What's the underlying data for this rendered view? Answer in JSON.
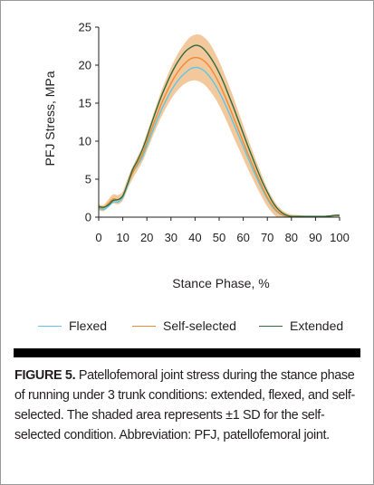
{
  "chart_data": {
    "type": "line",
    "title": "",
    "xlabel": "Stance Phase, %",
    "ylabel": "PFJ Stress, MPa",
    "xlim": [
      0,
      100
    ],
    "ylim": [
      0,
      25
    ],
    "x_ticks": [
      "0",
      "10",
      "20",
      "30",
      "40",
      "50",
      "60",
      "70",
      "80",
      "90",
      "100"
    ],
    "y_ticks": [
      "0",
      "5",
      "10",
      "15",
      "20",
      "25"
    ],
    "grid": false,
    "legend_position": "bottom",
    "x": [
      0,
      2,
      4,
      6,
      8,
      10,
      12,
      14,
      16,
      18,
      20,
      22,
      24,
      26,
      28,
      30,
      32,
      34,
      36,
      38,
      40,
      42,
      44,
      46,
      48,
      50,
      52,
      54,
      56,
      58,
      60,
      62,
      64,
      66,
      68,
      70,
      72,
      74,
      76,
      78,
      80,
      82,
      84,
      86,
      88,
      90,
      92,
      94,
      96,
      98,
      100
    ],
    "series": [
      {
        "name": "Flexed",
        "color": "#5bc8e6",
        "values": [
          1.2,
          1.0,
          1.4,
          2.0,
          2.0,
          2.6,
          4.2,
          5.8,
          6.8,
          7.8,
          9.4,
          11.0,
          12.6,
          14.1,
          15.4,
          16.6,
          17.6,
          18.4,
          19.0,
          19.5,
          19.7,
          19.6,
          19.2,
          18.5,
          17.6,
          16.5,
          15.2,
          13.8,
          12.3,
          10.8,
          9.3,
          7.8,
          6.3,
          4.9,
          3.6,
          2.4,
          1.4,
          0.7,
          0.3,
          0.1,
          0.05,
          0.1,
          0.1,
          0.1,
          0.1,
          0.1,
          0.1,
          0.1,
          0.15,
          0.2,
          0.2
        ]
      },
      {
        "name": "Self-selected",
        "color": "#f28a2c",
        "values": [
          1.3,
          1.2,
          1.8,
          2.4,
          2.3,
          2.8,
          4.4,
          5.8,
          7.0,
          8.2,
          9.9,
          11.6,
          13.3,
          14.9,
          16.3,
          17.6,
          18.7,
          19.6,
          20.3,
          20.8,
          21.0,
          20.9,
          20.5,
          19.8,
          18.8,
          17.6,
          16.2,
          14.7,
          13.1,
          11.5,
          9.9,
          8.3,
          6.8,
          5.3,
          3.9,
          2.6,
          1.6,
          0.8,
          0.35,
          0.15,
          0.05,
          0.1,
          0.1,
          0.1,
          0.1,
          0.1,
          0.1,
          0.1,
          0.15,
          0.2,
          0.2
        ]
      },
      {
        "name": "Extended",
        "color": "#2d6b3b",
        "values": [
          1.4,
          1.3,
          1.6,
          2.2,
          2.3,
          2.8,
          4.4,
          6.2,
          7.4,
          8.8,
          10.5,
          12.4,
          14.2,
          15.9,
          17.4,
          18.8,
          20.0,
          21.0,
          21.8,
          22.3,
          22.6,
          22.5,
          22.0,
          21.2,
          20.2,
          19.0,
          17.6,
          16.0,
          14.4,
          12.7,
          11.0,
          9.3,
          7.7,
          6.1,
          4.6,
          3.3,
          2.1,
          1.2,
          0.6,
          0.25,
          0.1,
          0.1,
          0.1,
          0.1,
          0.1,
          0.1,
          0.1,
          0.1,
          0.15,
          0.25,
          0.25
        ]
      }
    ],
    "band": {
      "series": "Self-selected",
      "color": "#f3c89d",
      "sd": [
        0.4,
        0.4,
        0.5,
        0.6,
        0.6,
        0.6,
        0.7,
        0.8,
        0.9,
        1.0,
        1.2,
        1.3,
        1.5,
        1.7,
        1.9,
        2.1,
        2.3,
        2.5,
        2.7,
        2.9,
        3.0,
        3.1,
        3.1,
        3.1,
        3.0,
        2.9,
        2.8,
        2.7,
        2.6,
        2.4,
        2.2,
        2.0,
        1.8,
        1.6,
        1.4,
        1.2,
        1.0,
        0.8,
        0.6,
        0.4,
        0.3,
        0.2,
        0.15,
        0.1,
        0.1,
        0.1,
        0.1,
        0.1,
        0.1,
        0.1,
        0.1
      ]
    }
  },
  "legend": [
    {
      "name": "Flexed",
      "color": "#5bc8e6"
    },
    {
      "name": "Self-selected",
      "color": "#f28a2c"
    },
    {
      "name": "Extended",
      "color": "#2d6b3b"
    }
  ],
  "caption": {
    "label": "FIGURE 5.",
    "text": " Patellofemoral joint stress during the stance phase of running under 3 trunk conditions: extended, flexed, and self-selected. The shaded area represents ±1 SD for the self-selected condition. Abbreviation: PFJ, patellofemoral joint."
  }
}
